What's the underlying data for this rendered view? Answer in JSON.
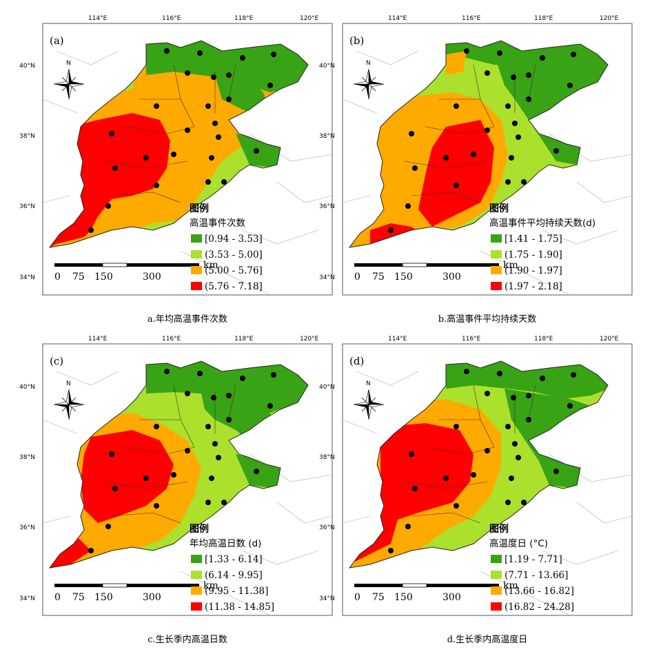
{
  "lon_ticks": [
    "114°E",
    "116°E",
    "118°E",
    "120°E"
  ],
  "lat_ticks": [
    "40°N",
    "38°N",
    "36°N",
    "34°N"
  ],
  "north_label": "N",
  "scale_unit": "km",
  "scale_ticks": [
    "0",
    "75",
    "150",
    "300"
  ],
  "colors": {
    "c1": "#38a314",
    "c2": "#abe02c",
    "c3": "#ffaa00",
    "c4": "#ff0000"
  },
  "panels": [
    {
      "tag": "(a)",
      "legend_title": "图例",
      "legend_subtitle": "高温事件次数",
      "classes": [
        "[0.94 - 3.53]",
        "(3.53 - 5.00]",
        "(5.00 - 5.76]",
        "(5.76 - 7.18]"
      ],
      "caption": "a.年均高温事件次数"
    },
    {
      "tag": "(b)",
      "legend_title": "图例",
      "legend_subtitle": "高温事件平均持续天数(d)",
      "classes": [
        "[1.41 - 1.75]",
        "(1.75 - 1.90]",
        "(1.90 - 1.97]",
        "(1.97 - 2.18]"
      ],
      "caption": "b.高温事件平均持续天数"
    },
    {
      "tag": "(c)",
      "legend_title": "图例",
      "legend_subtitle": "年均高温日数 (d)",
      "classes": [
        "[1.33 - 6.14]",
        "(6.14 - 9.95]",
        "(9.95 - 11.38]",
        "(11.38 - 14.85]"
      ],
      "caption": "c.生长季内高温日数"
    },
    {
      "tag": "(d)",
      "legend_title": "图例",
      "legend_subtitle": "高温度日 (°C)",
      "classes": [
        "[1.19 - 7.71]",
        "(7.71 - 13.66]",
        "(13.66 - 16.82]",
        "(16.82 - 24.28]"
      ],
      "caption": "d.生长季内高温度日"
    }
  ]
}
